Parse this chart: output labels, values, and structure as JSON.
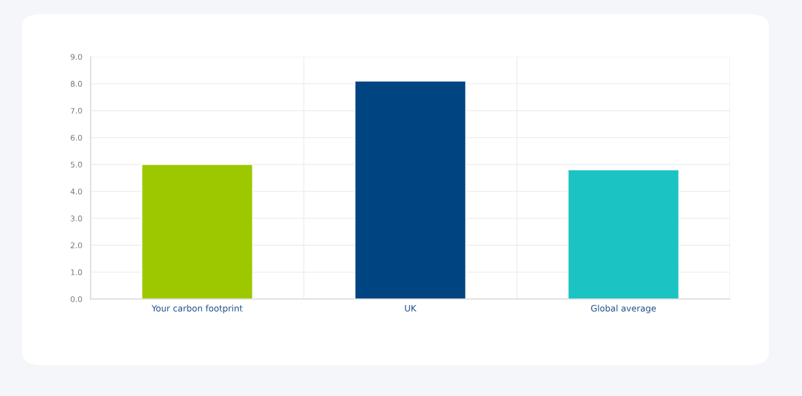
{
  "chart_data": {
    "type": "bar",
    "categories": [
      "Your carbon footprint",
      "UK",
      "Global average"
    ],
    "values": [
      5.0,
      8.1,
      4.8
    ],
    "colors": [
      "#9dc800",
      "#004481",
      "#1bc3c3"
    ],
    "ylim": [
      0,
      9
    ],
    "yticks": [
      {
        "value": 0,
        "label": "0.0"
      },
      {
        "value": 1,
        "label": "1.0"
      },
      {
        "value": 2,
        "label": "2.0"
      },
      {
        "value": 3,
        "label": "3.0"
      },
      {
        "value": 4,
        "label": "4.0"
      },
      {
        "value": 5,
        "label": "5.0"
      },
      {
        "value": 6,
        "label": "6.0"
      },
      {
        "value": 7,
        "label": "7.0"
      },
      {
        "value": 8,
        "label": "8.0"
      },
      {
        "value": 9,
        "label": "9.0"
      }
    ],
    "grid": true
  }
}
